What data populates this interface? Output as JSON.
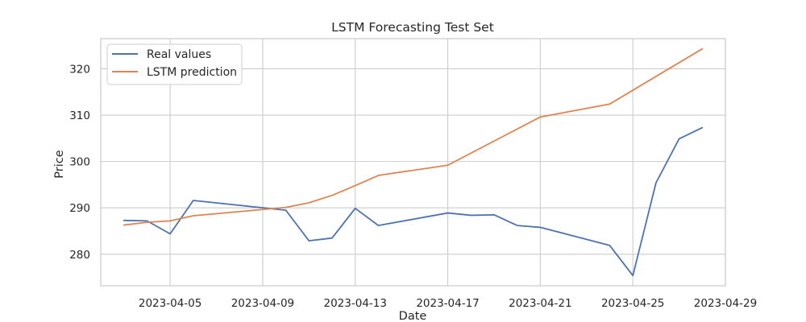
{
  "chart_data": {
    "type": "line",
    "title": "LSTM Forecasting Test Set",
    "xlabel": "Date",
    "ylabel": "Price",
    "x_type": "date",
    "xlim": [
      "2023-04-02",
      "2023-04-29"
    ],
    "ylim": [
      273.2,
      326.5
    ],
    "x_ticks": [
      "2023-04-05",
      "2023-04-09",
      "2023-04-13",
      "2023-04-17",
      "2023-04-21",
      "2023-04-25",
      "2023-04-29"
    ],
    "y_ticks": [
      280,
      290,
      300,
      310,
      320
    ],
    "grid": true,
    "legend": "top-left",
    "series": [
      {
        "name": "Real values",
        "color": "#4c72b0",
        "points": [
          [
            "2023-04-03",
            287.3
          ],
          [
            "2023-04-04",
            287.2
          ],
          [
            "2023-04-05",
            284.4
          ],
          [
            "2023-04-06",
            291.6
          ],
          [
            "2023-04-10",
            289.5
          ],
          [
            "2023-04-11",
            282.9
          ],
          [
            "2023-04-12",
            283.5
          ],
          [
            "2023-04-13",
            289.9
          ],
          [
            "2023-04-14",
            286.2
          ],
          [
            "2023-04-17",
            288.9
          ],
          [
            "2023-04-18",
            288.4
          ],
          [
            "2023-04-19",
            288.5
          ],
          [
            "2023-04-20",
            286.2
          ],
          [
            "2023-04-21",
            285.8
          ],
          [
            "2023-04-24",
            281.9
          ],
          [
            "2023-04-25",
            275.4
          ],
          [
            "2023-04-26",
            295.4
          ],
          [
            "2023-04-27",
            304.9
          ],
          [
            "2023-04-28",
            307.3
          ]
        ]
      },
      {
        "name": "LSTM prediction",
        "color": "#dd8452",
        "points": [
          [
            "2023-04-03",
            286.3
          ],
          [
            "2023-04-04",
            286.9
          ],
          [
            "2023-04-05",
            287.2
          ],
          [
            "2023-04-06",
            288.3
          ],
          [
            "2023-04-10",
            290.1
          ],
          [
            "2023-04-11",
            291.1
          ],
          [
            "2023-04-12",
            292.7
          ],
          [
            "2023-04-13",
            294.8
          ],
          [
            "2023-04-14",
            297.0
          ],
          [
            "2023-04-17",
            299.2
          ],
          [
            "2023-04-21",
            309.6
          ],
          [
            "2023-04-24",
            312.4
          ],
          [
            "2023-04-28",
            324.3
          ]
        ]
      }
    ]
  }
}
